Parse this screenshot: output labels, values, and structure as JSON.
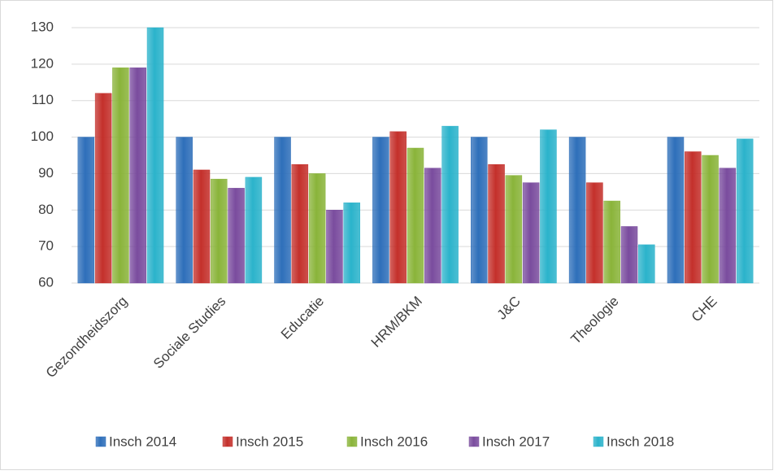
{
  "chart_data": {
    "type": "bar",
    "categories": [
      "Gezondheidszorg",
      "Sociale Studies",
      "Educatie",
      "HRM/BKM",
      "J&C",
      "Theologie",
      "CHE"
    ],
    "series": [
      {
        "name": "Insch 2014",
        "color": "#2e6fba",
        "values": [
          100,
          100,
          100,
          100,
          100,
          100,
          100
        ]
      },
      {
        "name": "Insch 2015",
        "color": "#c4302b",
        "values": [
          112,
          91,
          92.5,
          101.5,
          92.5,
          87.5,
          96
        ]
      },
      {
        "name": "Insch 2016",
        "color": "#8ab43a",
        "values": [
          119,
          88.5,
          90,
          97,
          89.5,
          82.5,
          95
        ]
      },
      {
        "name": "Insch 2017",
        "color": "#7a4c9e",
        "values": [
          119,
          86,
          80,
          91.5,
          87.5,
          75.5,
          91.5
        ]
      },
      {
        "name": "Insch 2018",
        "color": "#2bb3cb",
        "values": [
          130,
          89,
          82,
          103,
          102,
          70.5,
          99.5
        ]
      }
    ],
    "ylim": [
      60,
      130
    ],
    "yticks": [
      60,
      70,
      80,
      90,
      100,
      110,
      120,
      130
    ],
    "grid": true,
    "legend": "bottom"
  }
}
